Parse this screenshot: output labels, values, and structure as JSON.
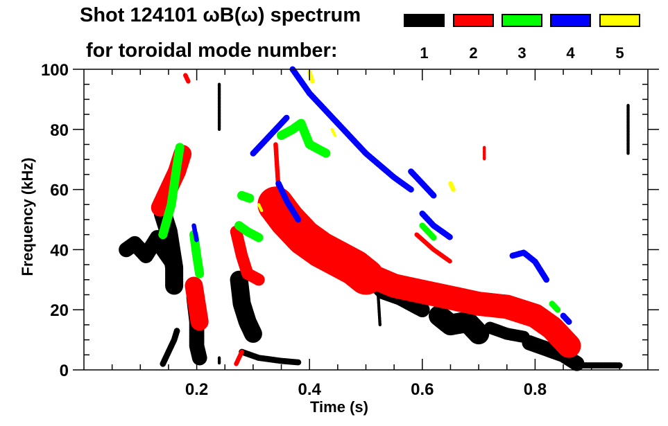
{
  "chart_data": {
    "type": "heatmap",
    "title": "Shot 124101 ωB(ω) spectrum",
    "subtitle": "for toroidal mode number:",
    "xlabel": "Time (s)",
    "ylabel": "Frequency (kHz)",
    "xlim": [
      0.0,
      1.0
    ],
    "ylim": [
      0,
      100
    ],
    "x_ticks": [
      0.2,
      0.4,
      0.6,
      0.8
    ],
    "x_tick_labels": [
      "0.2",
      "0.4",
      "0.6",
      "0.8"
    ],
    "x_minor_step": 0.05,
    "y_ticks": [
      0,
      20,
      40,
      60,
      80,
      100
    ],
    "y_tick_labels": [
      "0",
      "20",
      "40",
      "60",
      "80",
      "100"
    ],
    "y_minor_step": 5,
    "legend_placement": "top-right",
    "legend": [
      {
        "label": "1",
        "color": "#000000"
      },
      {
        "label": "2",
        "color": "#ff0000"
      },
      {
        "label": "3",
        "color": "#00ff00"
      },
      {
        "label": "4",
        "color": "#0000ff"
      },
      {
        "label": "5",
        "color": "#ffff00"
      }
    ],
    "series": [
      {
        "name": "1",
        "color": "#000000",
        "traces": [
          {
            "spread": 5,
            "points": [
              [
                0.075,
                40
              ],
              [
                0.09,
                42
              ],
              [
                0.11,
                38
              ],
              [
                0.13,
                44
              ],
              [
                0.14,
                40
              ],
              [
                0.155,
                36
              ]
            ]
          },
          {
            "spread": 6,
            "points": [
              [
                0.14,
                52
              ],
              [
                0.15,
                46
              ],
              [
                0.155,
                40
              ],
              [
                0.16,
                34
              ],
              [
                0.16,
                28
              ]
            ]
          },
          {
            "spread": 2,
            "points": [
              [
                0.14,
                2
              ],
              [
                0.15,
                6
              ],
              [
                0.16,
                10
              ],
              [
                0.165,
                13
              ]
            ]
          },
          {
            "spread": 5,
            "points": [
              [
                0.195,
                24
              ],
              [
                0.2,
                16
              ],
              [
                0.2,
                8
              ],
              [
                0.205,
                4
              ]
            ]
          },
          {
            "spread": 6,
            "points": [
              [
                0.275,
                30
              ],
              [
                0.28,
                22
              ],
              [
                0.29,
                16
              ],
              [
                0.3,
                12
              ]
            ]
          },
          {
            "spread": 2,
            "points": [
              [
                0.28,
                6
              ],
              [
                0.31,
                4
              ],
              [
                0.35,
                3
              ],
              [
                0.38,
                2.5
              ]
            ]
          },
          {
            "spread": 5,
            "points": [
              [
                0.51,
                30
              ],
              [
                0.53,
                26
              ],
              [
                0.56,
                24
              ],
              [
                0.58,
                22
              ],
              [
                0.6,
                20
              ]
            ]
          },
          {
            "spread": 7,
            "points": [
              [
                0.63,
                18
              ],
              [
                0.65,
                15
              ],
              [
                0.68,
                16
              ],
              [
                0.7,
                12
              ]
            ]
          },
          {
            "spread": 4,
            "points": [
              [
                0.72,
                14
              ],
              [
                0.75,
                12
              ],
              [
                0.78,
                11
              ]
            ]
          },
          {
            "spread": 5,
            "points": [
              [
                0.79,
                9
              ],
              [
                0.82,
                7
              ],
              [
                0.85,
                5
              ],
              [
                0.875,
                2
              ]
            ]
          },
          {
            "spread": 2,
            "points": [
              [
                0.88,
                1.5
              ],
              [
                0.92,
                1.5
              ],
              [
                0.95,
                1.5
              ]
            ]
          },
          {
            "spread": 1,
            "points": [
              [
                0.24,
                95
              ],
              [
                0.24,
                80
              ]
            ]
          },
          {
            "spread": 1,
            "points": [
              [
                0.965,
                88
              ],
              [
                0.965,
                72
              ]
            ]
          },
          {
            "spread": 1,
            "points": [
              [
                0.52,
                30
              ],
              [
                0.525,
                15
              ]
            ]
          },
          {
            "spread": 1,
            "points": [
              [
                0.24,
                4
              ],
              [
                0.24,
                2
              ]
            ]
          }
        ]
      },
      {
        "name": "2",
        "color": "#ff0000",
        "traces": [
          {
            "spread": 6,
            "points": [
              [
                0.135,
                54
              ],
              [
                0.15,
                60
              ],
              [
                0.165,
                66
              ],
              [
                0.175,
                72
              ]
            ]
          },
          {
            "spread": 6,
            "points": [
              [
                0.195,
                28
              ],
              [
                0.2,
                22
              ],
              [
                0.205,
                16
              ]
            ]
          },
          {
            "spread": 1.5,
            "points": [
              [
                0.18,
                98
              ],
              [
                0.185,
                96
              ]
            ]
          },
          {
            "spread": 4,
            "points": [
              [
                0.27,
                46
              ],
              [
                0.28,
                38
              ],
              [
                0.29,
                32
              ],
              [
                0.31,
                30
              ]
            ]
          },
          {
            "spread": 12,
            "points": [
              [
                0.34,
                55
              ],
              [
                0.36,
                50
              ],
              [
                0.39,
                44
              ],
              [
                0.42,
                40
              ],
              [
                0.45,
                37
              ],
              [
                0.48,
                34
              ],
              [
                0.5,
                31
              ]
            ]
          },
          {
            "spread": 8,
            "points": [
              [
                0.5,
                32
              ],
              [
                0.55,
                28
              ],
              [
                0.6,
                26
              ],
              [
                0.65,
                24
              ],
              [
                0.7,
                22
              ],
              [
                0.75,
                21
              ],
              [
                0.8,
                18
              ],
              [
                0.83,
                14
              ],
              [
                0.86,
                8
              ]
            ]
          },
          {
            "spread": 1.5,
            "points": [
              [
                0.34,
                75
              ],
              [
                0.345,
                60
              ]
            ]
          },
          {
            "spread": 1.5,
            "points": [
              [
                0.27,
                2
              ],
              [
                0.28,
                6
              ]
            ]
          },
          {
            "spread": 1.5,
            "points": [
              [
                0.59,
                45
              ],
              [
                0.62,
                40
              ],
              [
                0.65,
                36
              ]
            ]
          },
          {
            "spread": 1,
            "points": [
              [
                0.71,
                74
              ],
              [
                0.71,
                70
              ]
            ]
          }
        ]
      },
      {
        "name": "3",
        "color": "#00ff00",
        "traces": [
          {
            "spread": 3,
            "points": [
              [
                0.14,
                45
              ],
              [
                0.155,
                55
              ],
              [
                0.165,
                68
              ],
              [
                0.17,
                74
              ]
            ]
          },
          {
            "spread": 3,
            "points": [
              [
                0.195,
                45
              ],
              [
                0.2,
                38
              ],
              [
                0.205,
                32
              ]
            ]
          },
          {
            "spread": 3,
            "points": [
              [
                0.275,
                48
              ],
              [
                0.29,
                46
              ],
              [
                0.31,
                44
              ]
            ]
          },
          {
            "spread": 3,
            "points": [
              [
                0.28,
                58
              ],
              [
                0.295,
                57
              ]
            ]
          },
          {
            "spread": 3,
            "points": [
              [
                0.35,
                78
              ],
              [
                0.37,
                80
              ],
              [
                0.385,
                82
              ],
              [
                0.4,
                75
              ],
              [
                0.43,
                72
              ]
            ]
          },
          {
            "spread": 2,
            "points": [
              [
                0.6,
                48
              ],
              [
                0.62,
                44
              ]
            ]
          },
          {
            "spread": 2,
            "points": [
              [
                0.83,
                22
              ],
              [
                0.84,
                20
              ]
            ]
          }
        ]
      },
      {
        "name": "4",
        "color": "#0000ff",
        "traces": [
          {
            "spread": 2,
            "points": [
              [
                0.37,
                100
              ],
              [
                0.4,
                92
              ],
              [
                0.45,
                82
              ],
              [
                0.5,
                72
              ],
              [
                0.55,
                64
              ],
              [
                0.58,
                60
              ]
            ]
          },
          {
            "spread": 2,
            "points": [
              [
                0.3,
                72
              ],
              [
                0.33,
                78
              ],
              [
                0.36,
                84
              ]
            ]
          },
          {
            "spread": 2,
            "points": [
              [
                0.345,
                62
              ],
              [
                0.36,
                56
              ],
              [
                0.38,
                50
              ]
            ]
          },
          {
            "spread": 2,
            "points": [
              [
                0.58,
                66
              ],
              [
                0.6,
                62
              ],
              [
                0.62,
                58
              ]
            ]
          },
          {
            "spread": 2,
            "points": [
              [
                0.6,
                52
              ],
              [
                0.62,
                48
              ],
              [
                0.65,
                44
              ]
            ]
          },
          {
            "spread": 2,
            "points": [
              [
                0.76,
                38
              ],
              [
                0.78,
                39
              ],
              [
                0.8,
                36
              ],
              [
                0.82,
                30
              ]
            ]
          },
          {
            "spread": 2,
            "points": [
              [
                0.85,
                18
              ],
              [
                0.86,
                16
              ]
            ]
          },
          {
            "spread": 1.5,
            "points": [
              [
                0.195,
                48
              ],
              [
                0.2,
                43
              ]
            ]
          }
        ]
      },
      {
        "name": "5",
        "color": "#ffff00",
        "traces": [
          {
            "spread": 1.5,
            "points": [
              [
                0.4,
                99
              ],
              [
                0.405,
                96
              ]
            ]
          },
          {
            "spread": 1.5,
            "points": [
              [
                0.65,
                62
              ],
              [
                0.655,
                60
              ]
            ]
          },
          {
            "spread": 1,
            "points": [
              [
                0.44,
                80
              ],
              [
                0.445,
                78
              ]
            ]
          },
          {
            "spread": 1,
            "points": [
              [
                0.31,
                55
              ],
              [
                0.315,
                53
              ]
            ]
          }
        ]
      }
    ]
  }
}
